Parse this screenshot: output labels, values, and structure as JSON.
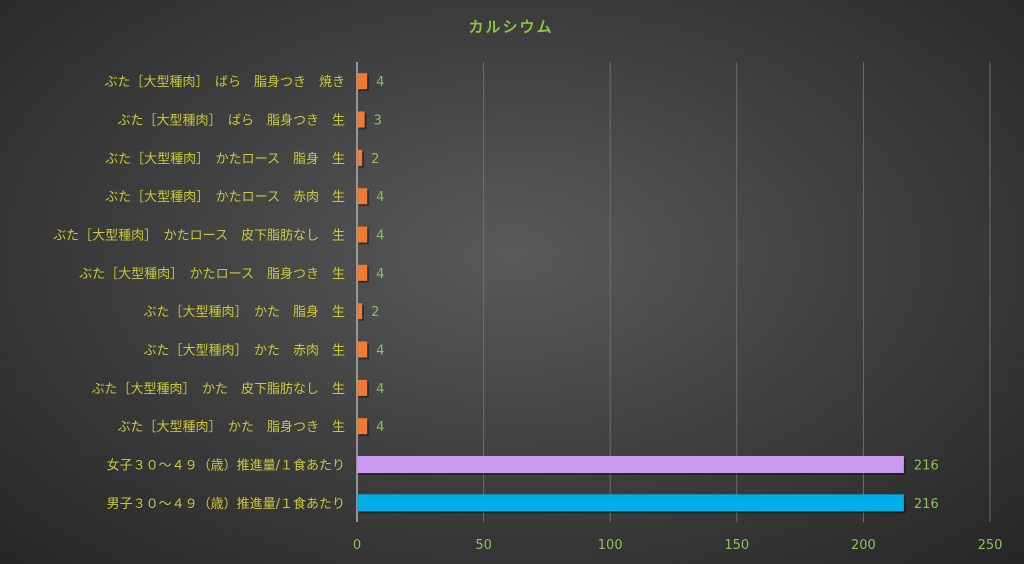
{
  "chart_data": {
    "type": "bar",
    "orientation": "horizontal",
    "title": "カルシウム",
    "categories": [
      "ぶた［大型種肉］　ばら　脂身つき　焼き",
      "ぶた［大型種肉］　ばら　脂身つき　生",
      "ぶた［大型種肉］　かたロース　脂身　生",
      "ぶた［大型種肉］　かたロース　赤肉　生",
      "ぶた［大型種肉］　かたロース　皮下脂肪なし　生",
      "ぶた［大型種肉］　かたロース　脂身つき　生",
      "ぶた［大型種肉］　かた　脂身　生",
      "ぶた［大型種肉］　かた　赤肉　生",
      "ぶた［大型種肉］　かた　皮下脂肪なし　生",
      "ぶた［大型種肉］　かた　脂身つき　生",
      "女子３０～４９（歳）推進量/１食あたり",
      "男子３０～４９（歳）推進量/１食あたり"
    ],
    "values": [
      4,
      3,
      2,
      4,
      4,
      4,
      2,
      4,
      4,
      4,
      216,
      216
    ],
    "bar_colors": [
      "#f07a30",
      "#f07a30",
      "#f07a30",
      "#f07a30",
      "#f07a30",
      "#f07a30",
      "#f07a30",
      "#f07a30",
      "#f07a30",
      "#f07a30",
      "#c89af0",
      "#00aee8"
    ],
    "xlim": [
      0,
      250
    ],
    "xticks": [
      0,
      50,
      100,
      150,
      200,
      250
    ],
    "grid": "vertical",
    "legend": "none",
    "data_labels": true
  }
}
